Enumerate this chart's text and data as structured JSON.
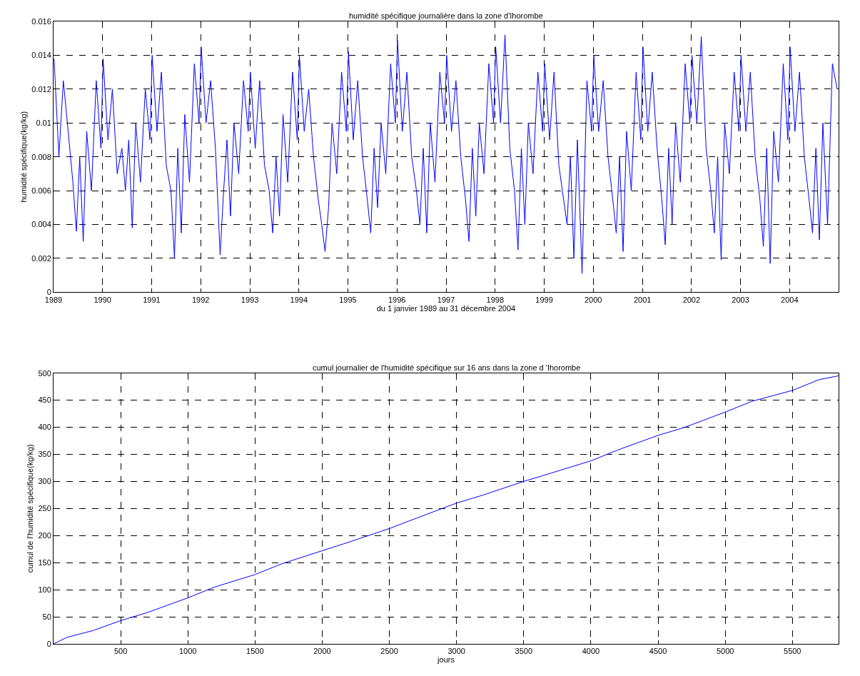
{
  "chart_data": [
    {
      "type": "line",
      "title": "humidité spécifique journalière dans la zone d'Ihorombe",
      "xlabel": "du 1 janvier 1989 au 31 décembre 2004",
      "ylabel": "humidité spécifique(kg/kg)",
      "grid": true,
      "line_style": "solid",
      "xlim": [
        "1989-01-01",
        "2004-12-31"
      ],
      "ylim": [
        0,
        0.016
      ],
      "yticks": [
        0,
        0.002,
        0.004,
        0.006,
        0.008,
        0.01,
        0.012,
        0.014,
        0.016
      ],
      "xticks": [
        {
          "value": "1989-01-01",
          "label": "1989"
        },
        {
          "value": "1990-01-01",
          "label": "1990"
        },
        {
          "value": "1991-01-01",
          "label": "1991"
        },
        {
          "value": "1992-01-01",
          "label": "1992"
        },
        {
          "value": "1993-01-01",
          "label": "1993"
        },
        {
          "value": "1994-01-01",
          "label": "1994"
        },
        {
          "value": "1995-01-01",
          "label": "1995"
        },
        {
          "value": "1996-01-01",
          "label": "1996"
        },
        {
          "value": "1997-01-01",
          "label": "1997"
        },
        {
          "value": "1998-01-01",
          "label": "1998"
        },
        {
          "value": "1999-01-01",
          "label": "1999"
        },
        {
          "value": "2000-01-01",
          "label": "2000"
        },
        {
          "value": "2001-01-01",
          "label": "2001"
        },
        {
          "value": "2002-01-01",
          "label": "2002"
        },
        {
          "value": "2003-01-01",
          "label": "2003"
        },
        {
          "value": "2004-01-01",
          "label": "2004"
        }
      ],
      "x": [
        "1989-01-05",
        "1989-02-10",
        "1989-03-15",
        "1989-04-20",
        "1989-05-25",
        "1989-06-20",
        "1989-07-15",
        "1989-08-10",
        "1989-09-05",
        "1989-10-10",
        "1989-11-15",
        "1989-12-20",
        "1990-01-05",
        "1990-02-10",
        "1990-03-15",
        "1990-04-20",
        "1990-05-25",
        "1990-06-20",
        "1990-07-15",
        "1990-08-10",
        "1990-09-05",
        "1990-10-10",
        "1990-11-15",
        "1990-12-20",
        "1991-01-05",
        "1991-02-10",
        "1991-03-15",
        "1991-04-20",
        "1991-05-25",
        "1991-06-20",
        "1991-07-15",
        "1991-08-10",
        "1991-09-05",
        "1991-10-10",
        "1991-11-15",
        "1991-12-20",
        "1992-01-05",
        "1992-02-10",
        "1992-03-15",
        "1992-04-20",
        "1992-05-25",
        "1992-06-20",
        "1992-07-15",
        "1992-08-10",
        "1992-09-05",
        "1992-10-10",
        "1992-11-15",
        "1992-12-20",
        "1993-01-05",
        "1993-02-10",
        "1993-03-15",
        "1993-04-20",
        "1993-05-25",
        "1993-06-20",
        "1993-07-15",
        "1993-08-10",
        "1993-09-05",
        "1993-10-10",
        "1993-11-15",
        "1993-12-20",
        "1994-01-05",
        "1994-02-10",
        "1994-03-15",
        "1994-04-20",
        "1994-05-25",
        "1994-06-20",
        "1994-07-15",
        "1994-08-10",
        "1994-09-05",
        "1994-10-10",
        "1994-11-15",
        "1994-12-20",
        "1995-01-05",
        "1995-02-10",
        "1995-03-15",
        "1995-04-20",
        "1995-05-25",
        "1995-06-20",
        "1995-07-15",
        "1995-08-10",
        "1995-09-05",
        "1995-10-10",
        "1995-11-15",
        "1995-12-20",
        "1996-01-05",
        "1996-02-10",
        "1996-03-15",
        "1996-04-20",
        "1996-05-25",
        "1996-06-20",
        "1996-07-15",
        "1996-08-10",
        "1996-09-05",
        "1996-10-10",
        "1996-11-15",
        "1996-12-20",
        "1997-01-05",
        "1997-02-10",
        "1997-03-15",
        "1997-04-20",
        "1997-05-25",
        "1997-06-20",
        "1997-07-15",
        "1997-08-10",
        "1997-09-05",
        "1997-10-10",
        "1997-11-15",
        "1997-12-20",
        "1998-01-05",
        "1998-02-10",
        "1998-03-15",
        "1998-04-20",
        "1998-05-25",
        "1998-06-20",
        "1998-07-15",
        "1998-08-10",
        "1998-09-05",
        "1998-10-10",
        "1998-11-15",
        "1998-12-20",
        "1999-01-05",
        "1999-02-10",
        "1999-03-15",
        "1999-04-20",
        "1999-05-25",
        "1999-06-20",
        "1999-07-15",
        "1999-08-10",
        "1999-09-05",
        "1999-10-10",
        "1999-11-15",
        "1999-12-20",
        "2000-01-05",
        "2000-02-10",
        "2000-03-15",
        "2000-04-20",
        "2000-05-25",
        "2000-06-20",
        "2000-07-15",
        "2000-08-10",
        "2000-09-05",
        "2000-10-10",
        "2000-11-15",
        "2000-12-20",
        "2001-01-05",
        "2001-02-10",
        "2001-03-15",
        "2001-04-20",
        "2001-05-25",
        "2001-06-20",
        "2001-07-15",
        "2001-08-10",
        "2001-09-05",
        "2001-10-10",
        "2001-11-15",
        "2001-12-20",
        "2002-01-05",
        "2002-02-10",
        "2002-03-15",
        "2002-04-20",
        "2002-05-25",
        "2002-06-20",
        "2002-07-15",
        "2002-08-10",
        "2002-09-05",
        "2002-10-10",
        "2002-11-15",
        "2002-12-20",
        "2003-01-05",
        "2003-02-10",
        "2003-03-15",
        "2003-04-20",
        "2003-05-25",
        "2003-06-20",
        "2003-07-15",
        "2003-08-10",
        "2003-09-05",
        "2003-10-10",
        "2003-11-15",
        "2003-12-20",
        "2004-01-05",
        "2004-02-10",
        "2004-03-15",
        "2004-04-20",
        "2004-05-25",
        "2004-06-20",
        "2004-07-15",
        "2004-08-10",
        "2004-09-05",
        "2004-10-10",
        "2004-11-15",
        "2004-12-20"
      ],
      "series": [
        {
          "color": "#0000ff",
          "values": [
            0.0138,
            0.008,
            0.0125,
            0.0095,
            0.0065,
            0.0036,
            0.008,
            0.003,
            0.0095,
            0.006,
            0.0125,
            0.0085,
            0.0138,
            0.009,
            0.012,
            0.007,
            0.0085,
            0.006,
            0.009,
            0.0038,
            0.01,
            0.0065,
            0.012,
            0.009,
            0.014,
            0.0095,
            0.013,
            0.0075,
            0.006,
            0.002,
            0.0085,
            0.0035,
            0.0105,
            0.0065,
            0.0135,
            0.01,
            0.0145,
            0.01,
            0.0125,
            0.0085,
            0.0022,
            0.006,
            0.009,
            0.0045,
            0.01,
            0.007,
            0.0125,
            0.0095,
            0.013,
            0.0085,
            0.0125,
            0.0075,
            0.006,
            0.0035,
            0.008,
            0.0045,
            0.0105,
            0.0065,
            0.013,
            0.009,
            0.014,
            0.0095,
            0.012,
            0.008,
            0.0055,
            0.004,
            0.0024,
            0.005,
            0.01,
            0.007,
            0.013,
            0.0095,
            0.0142,
            0.009,
            0.0125,
            0.008,
            0.0055,
            0.0035,
            0.0085,
            0.005,
            0.01,
            0.007,
            0.0135,
            0.01,
            0.0149,
            0.0095,
            0.013,
            0.008,
            0.006,
            0.004,
            0.0085,
            0.0035,
            0.01,
            0.0065,
            0.013,
            0.01,
            0.014,
            0.0095,
            0.0125,
            0.008,
            0.0055,
            0.003,
            0.0085,
            0.0045,
            0.01,
            0.007,
            0.0135,
            0.01,
            0.0145,
            0.01,
            0.0152,
            0.0085,
            0.006,
            0.0025,
            0.0085,
            0.004,
            0.01,
            0.007,
            0.013,
            0.0095,
            0.0135,
            0.009,
            0.013,
            0.0075,
            0.0055,
            0.004,
            0.008,
            0.002,
            0.009,
            0.0011,
            0.0125,
            0.0095,
            0.014,
            0.0095,
            0.0125,
            0.008,
            0.0055,
            0.0035,
            0.008,
            0.0024,
            0.0095,
            0.006,
            0.013,
            0.009,
            0.0145,
            0.0095,
            0.013,
            0.0085,
            0.0055,
            0.0028,
            0.0085,
            0.004,
            0.01,
            0.0065,
            0.0135,
            0.01,
            0.014,
            0.01,
            0.0151,
            0.0085,
            0.006,
            0.0035,
            0.008,
            0.0019,
            0.01,
            0.007,
            0.013,
            0.0095,
            0.014,
            0.0095,
            0.013,
            0.008,
            0.0055,
            0.0027,
            0.0085,
            0.0017,
            0.0095,
            0.0065,
            0.0135,
            0.009,
            0.0145,
            0.0095,
            0.013,
            0.008,
            0.0055,
            0.0035,
            0.0085,
            0.0031,
            0.01,
            0.004,
            0.0135,
            0.012
          ]
        }
      ]
    },
    {
      "type": "line",
      "title": "cumul journalier de l'humidité spécifique sur 16 ans dans la zone d 'Ihorombe",
      "xlabel": "jours",
      "ylabel": "cumul de l'humidité spécifique(kg/kg)",
      "grid": true,
      "line_style": "solid",
      "xlim": [
        0,
        5844
      ],
      "ylim": [
        0,
        500
      ],
      "xticks": [
        500,
        1000,
        1500,
        2000,
        2500,
        3000,
        3500,
        4000,
        4500,
        5000,
        5500
      ],
      "yticks": [
        0,
        50,
        100,
        150,
        200,
        250,
        300,
        350,
        400,
        450,
        500
      ],
      "x": [
        0,
        100,
        300,
        500,
        700,
        1000,
        1200,
        1500,
        1700,
        2000,
        2200,
        2500,
        2700,
        3000,
        3200,
        3500,
        3700,
        4000,
        4200,
        4500,
        4700,
        5000,
        5200,
        5500,
        5700,
        5844
      ],
      "series": [
        {
          "color": "#0000ff",
          "values": [
            0,
            12,
            25,
            43,
            58,
            85,
            105,
            128,
            148,
            172,
            188,
            213,
            232,
            260,
            275,
            300,
            315,
            338,
            358,
            385,
            400,
            428,
            448,
            468,
            488,
            495
          ]
        }
      ]
    }
  ]
}
